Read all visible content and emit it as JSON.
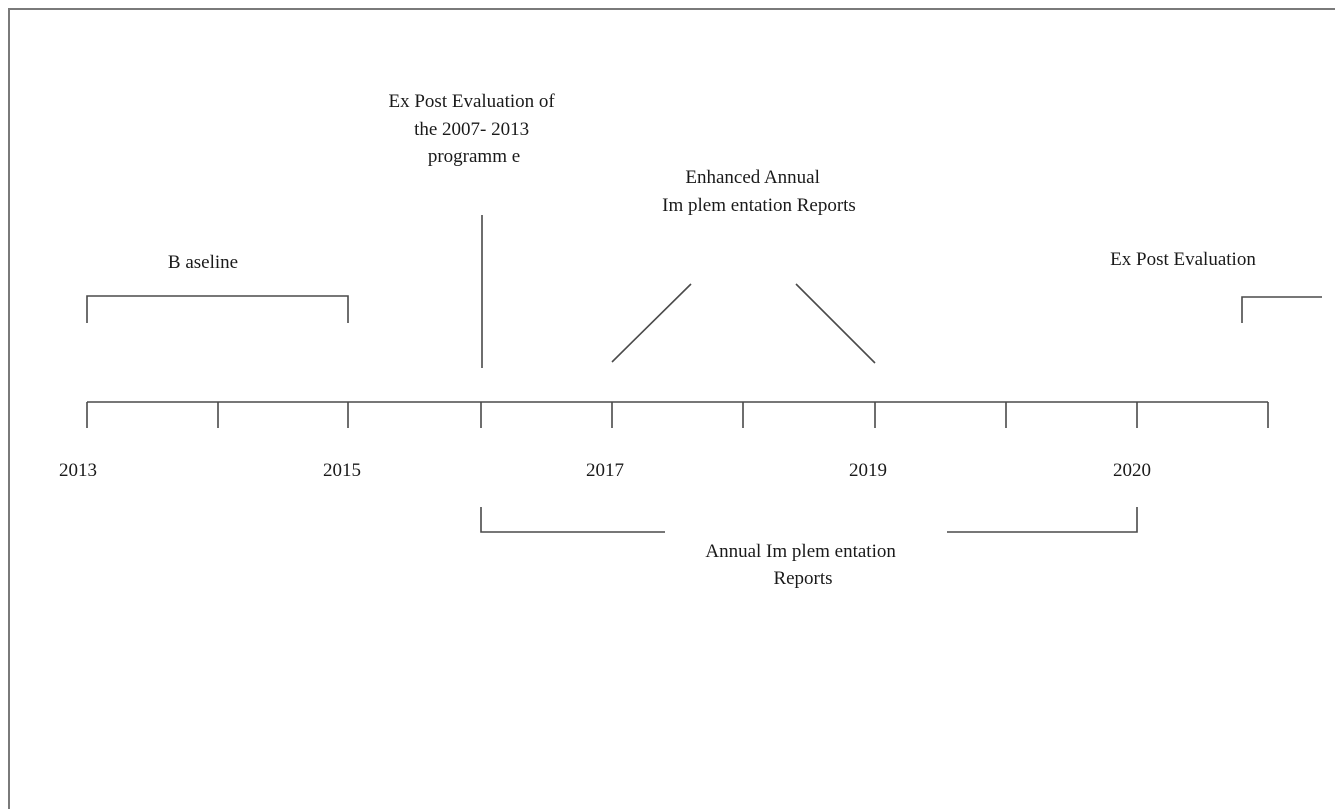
{
  "labels": {
    "ex_post_prev": [
      "Ex Post Evaluation of",
      "the 2007- 2013",
      "programm e"
    ],
    "enhanced": [
      "Enhanced Annual",
      "Im plem entation Reports"
    ],
    "baseline": "B aseline",
    "ex_post": "Ex Post Evaluation",
    "annual": [
      "Annual Im plem entation",
      "Reports"
    ]
  },
  "years": [
    "2013",
    "2015",
    "2017",
    "2019",
    "2020"
  ]
}
